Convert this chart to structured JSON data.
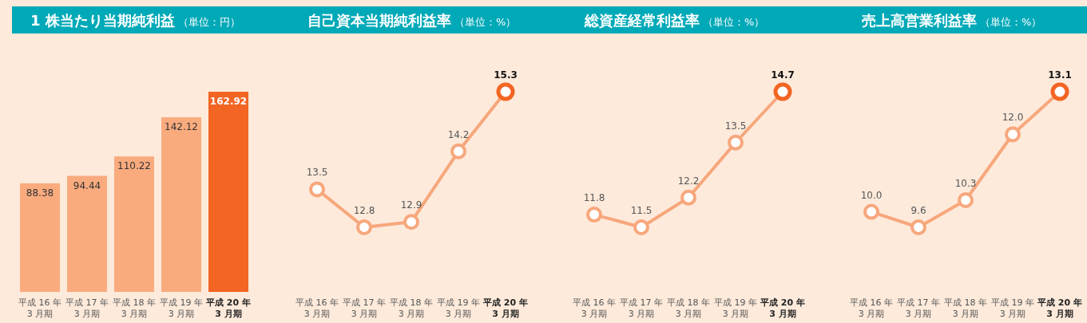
{
  "chart_data": [
    {
      "type": "bar",
      "title": "1 株当たり当期純利益",
      "subtitle": "（単位：円）",
      "categories": [
        "平成 16 年\n3 月期",
        "平成 17 年\n3 月期",
        "平成 18 年\n3 月期",
        "平成 19 年\n3 月期",
        "平成 20 年\n3 月期"
      ],
      "values": [
        88.38,
        94.44,
        110.22,
        142.12,
        162.92
      ],
      "colors": [
        "#f9ab7e",
        "#f9ab7e",
        "#f9ab7e",
        "#f9ab7e",
        "#f26522"
      ],
      "data_labels": true
    },
    {
      "type": "line",
      "title": "自己資本当期純利益率",
      "subtitle": "（単位：%）",
      "categories": [
        "平成 16 年\n3 月期",
        "平成 17 年\n3 月期",
        "平成 18 年\n3 月期",
        "平成 19 年\n3 月期",
        "平成 20 年\n3 月期"
      ],
      "series": [
        {
          "color": "#f7a77c",
          "values": [
            13.5,
            12.8,
            12.9,
            14.2,
            15.3
          ]
        }
      ],
      "colors": [
        "#f7a77c",
        "#f7a77c",
        "#f7a77c",
        "#f7a77c",
        "#f26522"
      ],
      "marker": "circle",
      "data_labels": true
    },
    {
      "type": "line",
      "title": "総資産経常利益率",
      "subtitle": "（単位：%）",
      "categories": [
        "平成 16 年\n3 月期",
        "平成 17 年\n3 月期",
        "平成 18 年\n3 月期",
        "平成 19 年\n3 月期",
        "平成 20 年\n3 月期"
      ],
      "series": [
        {
          "color": "#f7a77c",
          "values": [
            11.8,
            11.5,
            12.2,
            13.5,
            14.7
          ]
        }
      ],
      "colors": [
        "#f7a77c",
        "#f7a77c",
        "#f7a77c",
        "#f7a77c",
        "#f26522"
      ],
      "marker": "circle",
      "data_labels": true
    },
    {
      "type": "line",
      "title": "売上高営業利益率",
      "subtitle": "（単位：%）",
      "categories": [
        "平成 16 年\n3 月期",
        "平成 17 年\n3 月期",
        "平成 18 年\n3 月期",
        "平成 19 年\n3 月期",
        "平成 20 年\n3 月期"
      ],
      "series": [
        {
          "color": "#f7a77c",
          "values": [
            10.0,
            9.6,
            10.3,
            12.0,
            13.1
          ],
          "value_labels": [
            "10.0",
            "9.6",
            "10.3",
            "12.0",
            "13.1"
          ]
        }
      ],
      "colors": [
        "#f7a77c",
        "#f7a77c",
        "#f7a77c",
        "#f7a77c",
        "#f26522"
      ],
      "marker": "circle"
    }
  ]
}
